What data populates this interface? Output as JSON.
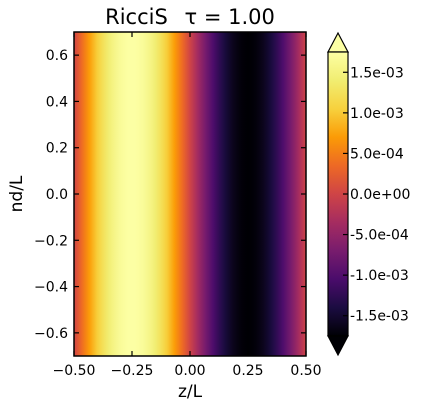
{
  "chart_data": {
    "type": "heatmap",
    "title": "RicciS",
    "title_annotation": "τ = 1.00",
    "xlabel": "z/L",
    "ylabel": "nd/L",
    "xlim": [
      -0.5,
      0.5
    ],
    "ylim": [
      -0.7,
      0.7
    ],
    "x_ticks": [
      -0.5,
      -0.25,
      0.0,
      0.25,
      0.5
    ],
    "x_tick_labels": [
      "−0.50",
      "−0.25",
      "0.00",
      "0.25",
      "0.50"
    ],
    "y_ticks": [
      -0.6,
      -0.4,
      -0.2,
      0.0,
      0.2,
      0.4,
      0.6
    ],
    "y_tick_labels": [
      "−0.6",
      "−0.4",
      "−0.2",
      "0.0",
      "0.2",
      "0.4",
      "0.6"
    ],
    "colormap": "inferno",
    "color_range": [
      -0.00175,
      0.00175
    ],
    "colorbar": {
      "ticks": [
        0.0015,
        0.001,
        0.0005,
        0.0,
        -0.0005,
        -0.001,
        -0.0015
      ],
      "tick_labels": [
        "1.5e-03",
        "1.0e-03",
        "5.0e-04",
        "0.0e+00",
        "-5.0e-04",
        "-1.0e-03",
        "-1.5e-03"
      ],
      "extend": "both"
    },
    "field": "RicciS(z) = 1.75e-03 · sin(−2π z / L); uniform in nd/L",
    "amplitude": 0.00175,
    "grid": false
  }
}
